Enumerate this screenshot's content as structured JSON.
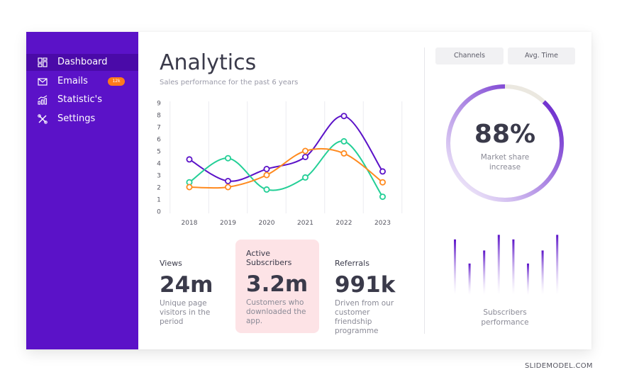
{
  "sidebar": {
    "items": [
      {
        "label": "Dashboard",
        "icon": "dashboard-icon",
        "active": true
      },
      {
        "label": "Emails",
        "icon": "mail-icon",
        "badge": "12k"
      },
      {
        "label": "Statistic's",
        "icon": "statistics-icon"
      },
      {
        "label": "Settings",
        "icon": "tools-icon"
      }
    ]
  },
  "header": {
    "title": "Analytics",
    "subtitle": "Sales performance for the past 6 years"
  },
  "chart_data": {
    "type": "line",
    "x": [
      "2018",
      "2019",
      "2020",
      "2021",
      "2022",
      "2023"
    ],
    "y_ticks": [
      "0",
      "1",
      "2",
      "3",
      "4",
      "5",
      "6",
      "7",
      "8",
      "9"
    ],
    "ylim": [
      0,
      9
    ],
    "grid": "vertical",
    "series": [
      {
        "color": "#5b12c8",
        "values": [
          4.3,
          2.5,
          3.5,
          4.5,
          7.9,
          3.3
        ]
      },
      {
        "color": "#23cf96",
        "values": [
          2.4,
          4.4,
          1.8,
          2.8,
          5.8,
          1.2
        ]
      },
      {
        "color": "#ff8a1f",
        "values": [
          2.0,
          2.0,
          3.0,
          5.0,
          4.8,
          2.4
        ]
      }
    ]
  },
  "stats": [
    {
      "label_lines": [
        "Views"
      ],
      "value": "24m",
      "desc_lines": [
        "Unique page",
        "visitors in the",
        "period"
      ]
    },
    {
      "label_lines": [
        "Active",
        "Subscribers"
      ],
      "value": "3.2m",
      "desc_lines": [
        "Customers who",
        "downloaded the",
        "app."
      ]
    },
    {
      "label_lines": [
        "Referrals"
      ],
      "value": "991k",
      "desc_lines": [
        "Driven from our",
        "customer",
        "friendship",
        "programme"
      ]
    }
  ],
  "tabs": {
    "channels": "Channels",
    "avg_time": "Avg. Time"
  },
  "market_share": {
    "value": "88%",
    "value_fraction": 0.88,
    "label_lines": [
      "Market share",
      "increase"
    ],
    "accent": "#5b12c8",
    "track": "#ebe8e0"
  },
  "subscribers": {
    "label_lines": [
      "Subscribers",
      "performance"
    ],
    "values": [
      0.85,
      0.48,
      0.68,
      0.92,
      0.85,
      0.48,
      0.68,
      0.92
    ]
  },
  "watermark": "SLIDEMODEL.COM"
}
